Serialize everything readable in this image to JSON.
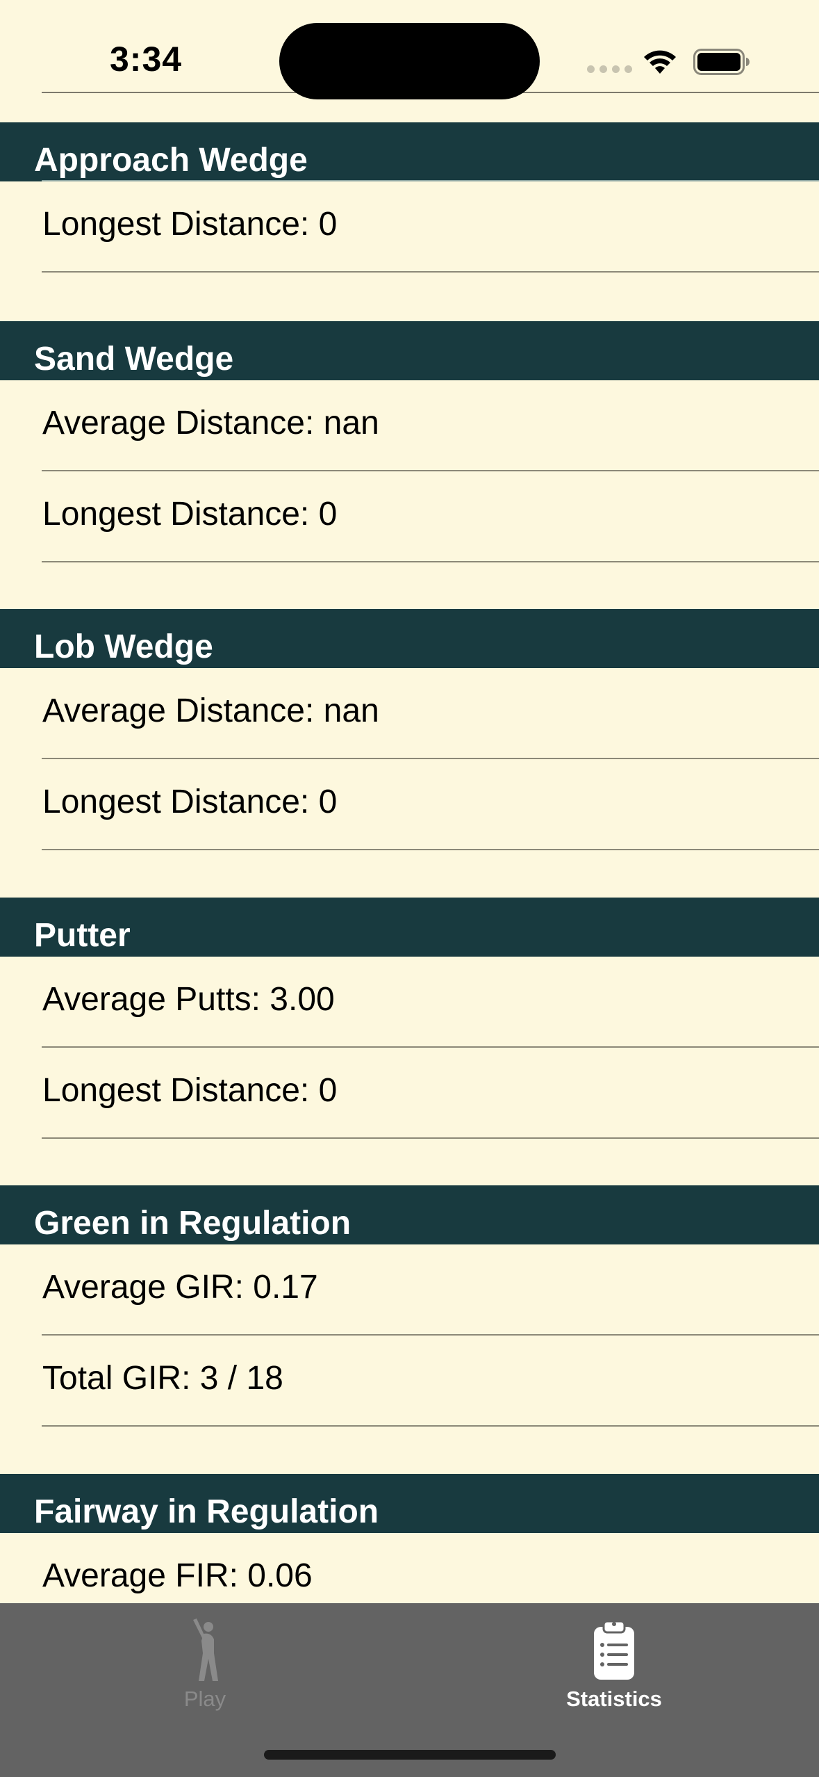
{
  "status_bar": {
    "time": "3:34"
  },
  "sections": [
    {
      "title": "Approach Wedge",
      "rows": [
        "Longest Distance: 0"
      ]
    },
    {
      "title": "Sand Wedge",
      "rows": [
        "Average Distance: nan",
        "Longest Distance: 0"
      ]
    },
    {
      "title": "Lob Wedge",
      "rows": [
        "Average Distance: nan",
        "Longest Distance: 0"
      ]
    },
    {
      "title": "Putter",
      "rows": [
        "Average Putts: 3.00",
        "Longest Distance: 0"
      ]
    },
    {
      "title": "Green in Regulation",
      "rows": [
        "Average GIR: 0.17",
        "Total GIR: 3 / 18"
      ]
    },
    {
      "title": "Fairway in Regulation",
      "rows": [
        "Average FIR: 0.06"
      ]
    }
  ],
  "tab_bar": {
    "items": [
      {
        "label": "Play",
        "icon": "golfer-icon",
        "selected": false
      },
      {
        "label": "Statistics",
        "icon": "clipboard-list-icon",
        "selected": true
      }
    ]
  },
  "colors": {
    "background": "#fdf8de",
    "section_header": "#183a3f",
    "tab_bar": "#636363"
  }
}
